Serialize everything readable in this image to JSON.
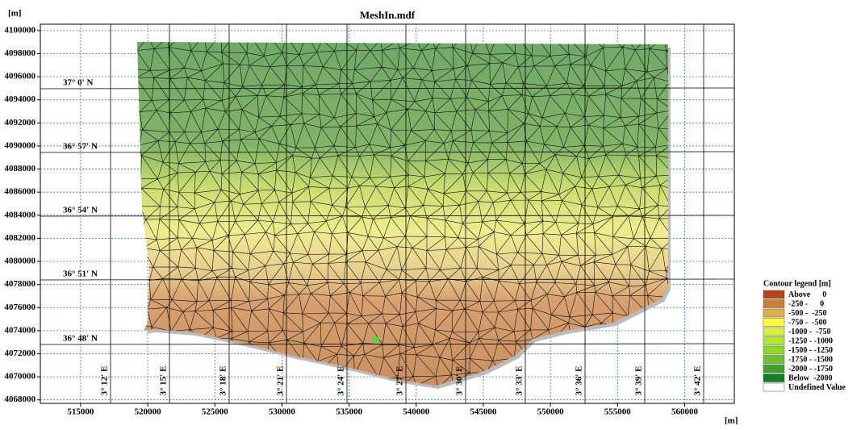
{
  "title": "MeshIn.mdf",
  "y_unit": "[m]",
  "x_unit": "[m]",
  "axes": {
    "xlim": [
      512000,
      563700
    ],
    "ylim": [
      4067700,
      4100550
    ],
    "xticks": [
      515000,
      520000,
      525000,
      530000,
      535000,
      540000,
      545000,
      550000,
      555000,
      560000
    ],
    "yticks": [
      4068000,
      4070000,
      4072000,
      4074000,
      4076000,
      4078000,
      4080000,
      4082000,
      4084000,
      4086000,
      4088000,
      4090000,
      4092000,
      4094000,
      4096000,
      4098000,
      4100000
    ]
  },
  "latitude_labels": [
    "37° 0' N",
    "36° 57' N",
    "36° 54' N",
    "36° 51' N",
    "36° 48' N"
  ],
  "longitude_labels": [
    "3° 12' E",
    "3° 15' E",
    "3° 18' E",
    "3° 21' E",
    "3° 24' E",
    "3° 27' E",
    "3° 30' E",
    "3° 33' E",
    "3° 36' E",
    "3° 39' E",
    "3° 42' E"
  ],
  "legend": {
    "title": "Contour legend [m]",
    "items": [
      {
        "label": "Above      0",
        "color": "#b8401a"
      },
      {
        "label": "-250 -      0",
        "color": "#c8803a"
      },
      {
        "label": "-500 -  -250",
        "color": "#e0b048"
      },
      {
        "label": "-750 -  -500",
        "color": "#ffff40"
      },
      {
        "label": "-1000 -  -750",
        "color": "#d8f040"
      },
      {
        "label": "-1250 - -1000",
        "color": "#b0e830"
      },
      {
        "label": "-1500 - -1250",
        "color": "#90d828"
      },
      {
        "label": "-1750 - -1500",
        "color": "#70c030"
      },
      {
        "label": "-2000 - -1750",
        "color": "#40a030"
      },
      {
        "label": "Below  -2000",
        "color": "#108020"
      },
      {
        "label": "Undefined Value",
        "color": "#ffffff"
      }
    ]
  }
}
